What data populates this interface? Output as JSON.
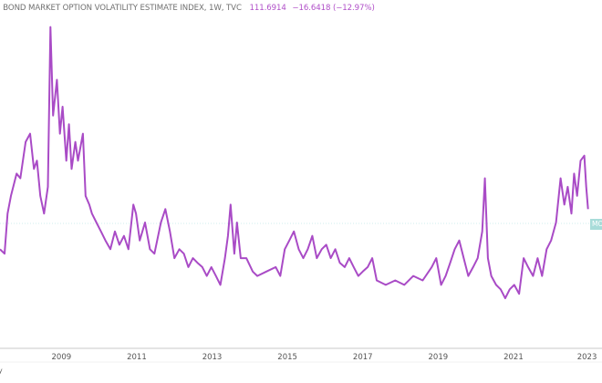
{
  "header": {
    "title": ". BOND MARKET OPTION VOLATILITY ESTIMATE INDEX, 1W, TVC",
    "last": "111.6914",
    "change": "−16.6418 (−12.97%)"
  },
  "price_tag": "MO",
  "footer_fragment": "y",
  "colors": {
    "line": "#a94bc6",
    "tag": "#a8dcd9",
    "axis": "#d0d0d0"
  },
  "chart_data": {
    "type": "line",
    "title": "BOND MARKET OPTION VOLATILITY ESTIMATE INDEX, 1W, TVC",
    "xlabel": "",
    "ylabel": "",
    "xlim": [
      2007.37,
      2023.35
    ],
    "ylim": [
      -7,
      290
    ],
    "grid": false,
    "x_ticks": [
      "2009",
      "2011",
      "2013",
      "2015",
      "2017",
      "2019",
      "2021",
      "2023"
    ],
    "last_value": 111.69,
    "series": [
      {
        "name": "MOVE",
        "x": [
          2007.37,
          2007.49,
          2007.57,
          2007.66,
          2007.81,
          2007.91,
          2008.05,
          2008.17,
          2008.27,
          2008.35,
          2008.44,
          2008.54,
          2008.64,
          2008.71,
          2008.78,
          2008.88,
          2008.96,
          2009.03,
          2009.13,
          2009.2,
          2009.27,
          2009.37,
          2009.44,
          2009.57,
          2009.64,
          2009.74,
          2009.81,
          2009.93,
          2010.05,
          2010.17,
          2010.3,
          2010.42,
          2010.54,
          2010.66,
          2010.78,
          2010.91,
          2010.98,
          2011.08,
          2011.22,
          2011.35,
          2011.47,
          2011.64,
          2011.76,
          2011.88,
          2012.0,
          2012.13,
          2012.25,
          2012.37,
          2012.49,
          2012.61,
          2012.74,
          2012.86,
          2012.98,
          2013.1,
          2013.22,
          2013.34,
          2013.42,
          2013.49,
          2013.59,
          2013.66,
          2013.76,
          2013.91,
          2014.08,
          2014.2,
          2014.44,
          2014.69,
          2014.81,
          2014.93,
          2015.05,
          2015.17,
          2015.3,
          2015.42,
          2015.54,
          2015.66,
          2015.78,
          2015.91,
          2016.03,
          2016.15,
          2016.27,
          2016.39,
          2016.52,
          2016.64,
          2016.76,
          2016.88,
          2017.0,
          2017.13,
          2017.25,
          2017.37,
          2017.61,
          2017.86,
          2018.1,
          2018.34,
          2018.59,
          2018.83,
          2018.95,
          2019.08,
          2019.2,
          2019.32,
          2019.44,
          2019.56,
          2019.68,
          2019.8,
          2019.93,
          2020.05,
          2020.17,
          2020.24,
          2020.32,
          2020.41,
          2020.54,
          2020.66,
          2020.78,
          2020.9,
          2021.02,
          2021.15,
          2021.27,
          2021.39,
          2021.52,
          2021.64,
          2021.76,
          2021.88,
          2022.0,
          2022.13,
          2022.25,
          2022.35,
          2022.44,
          2022.54,
          2022.61,
          2022.69,
          2022.78,
          2022.88,
          2022.93,
          2022.98
        ],
        "y": [
          77.5,
          73.7,
          107.9,
          123,
          142,
          138,
          169,
          176,
          146,
          153,
          123,
          107.9,
          130.7,
          267,
          191.5,
          222,
          176,
          199,
          153,
          184,
          146,
          169,
          153,
          176,
          123,
          115.5,
          107.9,
          100.3,
          92.7,
          85,
          77.5,
          92.7,
          81.3,
          88.9,
          77.5,
          115.5,
          107.9,
          85,
          100.3,
          77.5,
          73.7,
          100.3,
          111.7,
          92.7,
          69.9,
          77.5,
          73.7,
          62.3,
          69.9,
          66,
          62.3,
          54.7,
          62.3,
          54.7,
          47.1,
          69.9,
          88.9,
          115.5,
          73.7,
          100.3,
          69.9,
          69.9,
          58.5,
          54.7,
          58.5,
          62.3,
          54.7,
          77.5,
          85,
          92.7,
          77.5,
          69.9,
          77.5,
          88.9,
          69.9,
          77.5,
          81.3,
          69.9,
          77.5,
          66,
          62.3,
          69.9,
          62.3,
          54.7,
          58.5,
          62.3,
          69.9,
          50.9,
          47.1,
          50.9,
          47.1,
          54.7,
          50.9,
          62.3,
          69.9,
          47.1,
          54.7,
          66,
          77.5,
          85,
          69.9,
          54.7,
          62.3,
          69.9,
          92.7,
          138,
          69.9,
          54.7,
          47.1,
          43.3,
          35.7,
          43.3,
          47.1,
          39.5,
          69.9,
          62.3,
          54.7,
          69.9,
          54.7,
          77.5,
          85,
          100.3,
          138,
          115.5,
          130.7,
          107.9,
          142,
          123,
          153,
          157.3,
          130.7,
          111.7
        ]
      }
    ]
  }
}
